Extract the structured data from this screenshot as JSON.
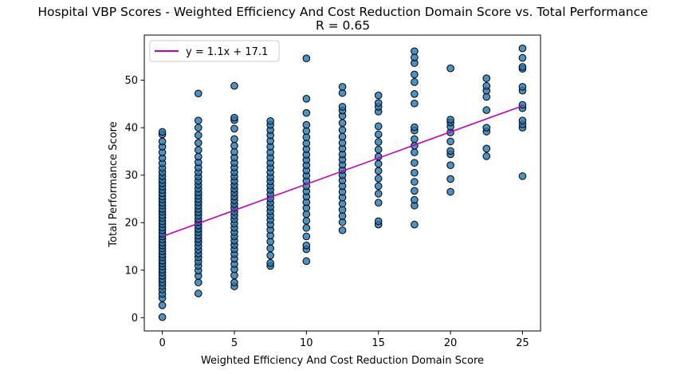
{
  "chart_data": {
    "type": "scatter",
    "title": "Hospital VBP Scores - Weighted Efficiency And Cost Reduction Domain Score vs. Total Performance",
    "subtitle": "R = 0.65",
    "xlabel": "Weighted Efficiency And Cost Reduction Domain Score",
    "ylabel": "Total Performance Score",
    "xlim": [
      -1.25,
      26.25
    ],
    "ylim": [
      -2.8,
      59.5
    ],
    "xticks": [
      0,
      5,
      10,
      15,
      20,
      25
    ],
    "yticks": [
      0,
      10,
      20,
      30,
      40,
      50
    ],
    "grid": false,
    "legend": {
      "position": "top-left",
      "entries": [
        "y = 1.1x + 17.1"
      ]
    },
    "regression": {
      "label": "y = 1.1x + 17.1",
      "slope": 1.1,
      "intercept": 17.1,
      "x_range": [
        0,
        25
      ],
      "color": "#bf00bf"
    },
    "marker": {
      "face": "#1f77b4",
      "edge": "#000000",
      "alpha": 0.8
    },
    "points_by_x": [
      {
        "x": 0,
        "y": [
          0.1,
          2.6,
          4.1,
          5.0,
          5.9,
          6.7,
          7.4,
          8.1,
          8.8,
          9.5,
          10.1,
          10.8,
          11.4,
          12.0,
          12.7,
          13.3,
          14.0,
          14.6,
          15.2,
          15.8,
          16.5,
          17.1,
          17.7,
          18.4,
          19.0,
          19.7,
          20.3,
          21.0,
          21.6,
          22.3,
          22.9,
          23.6,
          24.2,
          24.9,
          25.5,
          26.2,
          26.9,
          27.6,
          28.3,
          29.0,
          29.8,
          30.6,
          31.5,
          32.5,
          33.6,
          34.8,
          36.0,
          37.1,
          38.6,
          39.1
        ]
      },
      {
        "x": 2.5,
        "y": [
          5.1,
          7.4,
          8.8,
          9.9,
          10.9,
          11.8,
          12.7,
          13.5,
          14.3,
          15.1,
          15.9,
          16.6,
          17.3,
          18.0,
          18.7,
          19.4,
          20.1,
          20.8,
          21.5,
          22.2,
          22.9,
          23.6,
          24.3,
          25.0,
          25.7,
          26.4,
          27.2,
          28.0,
          28.8,
          29.7,
          30.6,
          31.6,
          32.7,
          33.9,
          35.3,
          36.8,
          38.4,
          40.0,
          41.5,
          47.2
        ]
      },
      {
        "x": 5,
        "y": [
          6.6,
          7.4,
          8.9,
          10.2,
          11.3,
          12.4,
          13.4,
          14.4,
          15.3,
          16.2,
          17.1,
          18.0,
          18.9,
          19.8,
          20.7,
          21.5,
          22.3,
          23.1,
          23.9,
          24.7,
          25.5,
          26.3,
          27.1,
          27.9,
          28.8,
          29.7,
          30.6,
          31.6,
          32.6,
          33.7,
          34.9,
          36.2,
          37.6,
          39.8,
          41.6,
          42.1,
          48.8
        ]
      },
      {
        "x": 7.5,
        "y": [
          10.9,
          11.5,
          13.1,
          14.6,
          16.0,
          17.3,
          18.5,
          19.6,
          20.6,
          21.5,
          22.4,
          23.3,
          24.2,
          25.1,
          26.0,
          26.9,
          27.8,
          28.7,
          29.6,
          30.6,
          31.6,
          32.6,
          33.7,
          34.8,
          36.0,
          37.2,
          38.4,
          39.5,
          40.6,
          41.4
        ]
      },
      {
        "x": 10,
        "y": [
          11.9,
          14.4,
          15.2,
          17.1,
          18.9,
          20.4,
          21.8,
          23.1,
          24.3,
          25.5,
          26.6,
          27.7,
          28.8,
          29.9,
          31.0,
          32.1,
          33.2,
          34.3,
          35.5,
          36.7,
          38.0,
          39.3,
          40.6,
          43.1,
          46.1,
          54.6
        ]
      },
      {
        "x": 12.5,
        "y": [
          18.4,
          20.1,
          21.4,
          22.7,
          24.0,
          25.3,
          26.5,
          27.7,
          28.9,
          30.0,
          31.1,
          32.2,
          33.3,
          34.4,
          35.6,
          36.8,
          38.1,
          39.5,
          41.0,
          42.5,
          43.6,
          44.4,
          47.3,
          48.6
        ]
      },
      {
        "x": 15,
        "y": [
          19.6,
          20.3,
          24.2,
          26.1,
          27.7,
          29.3,
          30.9,
          32.4,
          33.9,
          35.4,
          37.0,
          38.6,
          40.3,
          43.4,
          44.4,
          45.2,
          46.8
        ]
      },
      {
        "x": 17.5,
        "y": [
          19.6,
          23.6,
          24.8,
          26.7,
          28.6,
          30.5,
          32.6,
          34.8,
          36.2,
          37.6,
          39.4,
          40.1,
          45.1,
          47.1,
          49.6,
          51.2,
          53.6,
          54.8,
          56.1
        ]
      },
      {
        "x": 20,
        "y": [
          26.5,
          29.2,
          32.1,
          34.4,
          35.1,
          37.1,
          39.0,
          40.2,
          41.1,
          41.7,
          52.5
        ]
      },
      {
        "x": 22.5,
        "y": [
          34.0,
          35.6,
          39.2,
          40.0,
          43.7,
          46.5,
          47.8,
          48.8,
          50.4
        ]
      },
      {
        "x": 25,
        "y": [
          29.8,
          40.0,
          40.7,
          41.5,
          44.1,
          44.8,
          47.8,
          48.6,
          52.4,
          52.8,
          54.7,
          56.7
        ]
      }
    ]
  }
}
